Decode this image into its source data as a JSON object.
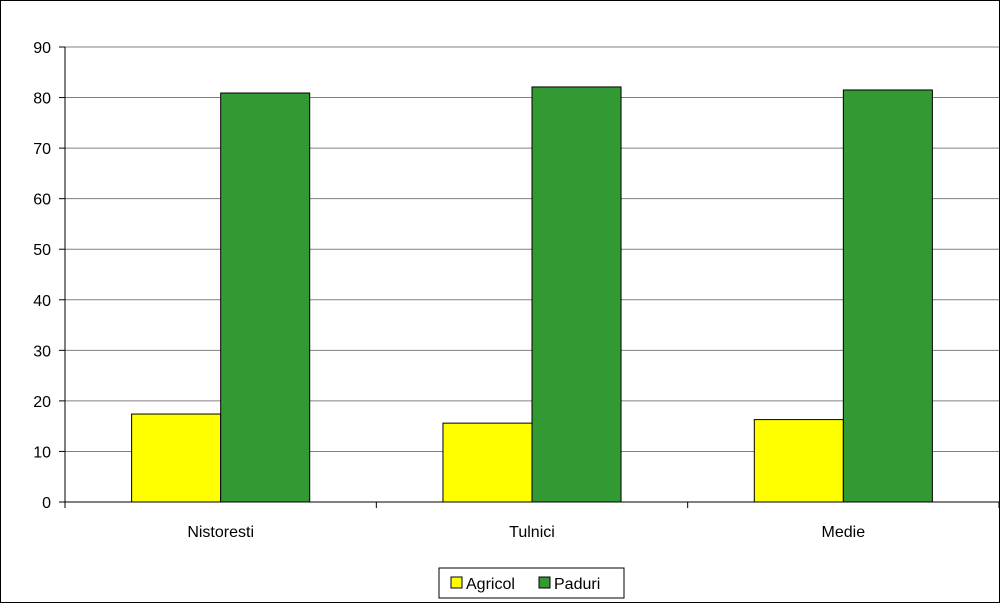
{
  "chart_data": {
    "type": "bar",
    "title": "",
    "xlabel": "",
    "ylabel": "",
    "categories": [
      "Nistoresti",
      "Tulnici",
      "Medie"
    ],
    "series": [
      {
        "name": "Agricol",
        "values": [
          17.4,
          15.6,
          16.3
        ],
        "color": "#ffff00"
      },
      {
        "name": "Paduri",
        "values": [
          80.9,
          82.1,
          81.5
        ],
        "color": "#339933"
      }
    ],
    "ylim": [
      0,
      90
    ],
    "yticks": [
      "0",
      "10",
      "20",
      "30",
      "40",
      "50",
      "60",
      "70",
      "80",
      "90"
    ],
    "grid": true,
    "legend": "bottom-center"
  }
}
